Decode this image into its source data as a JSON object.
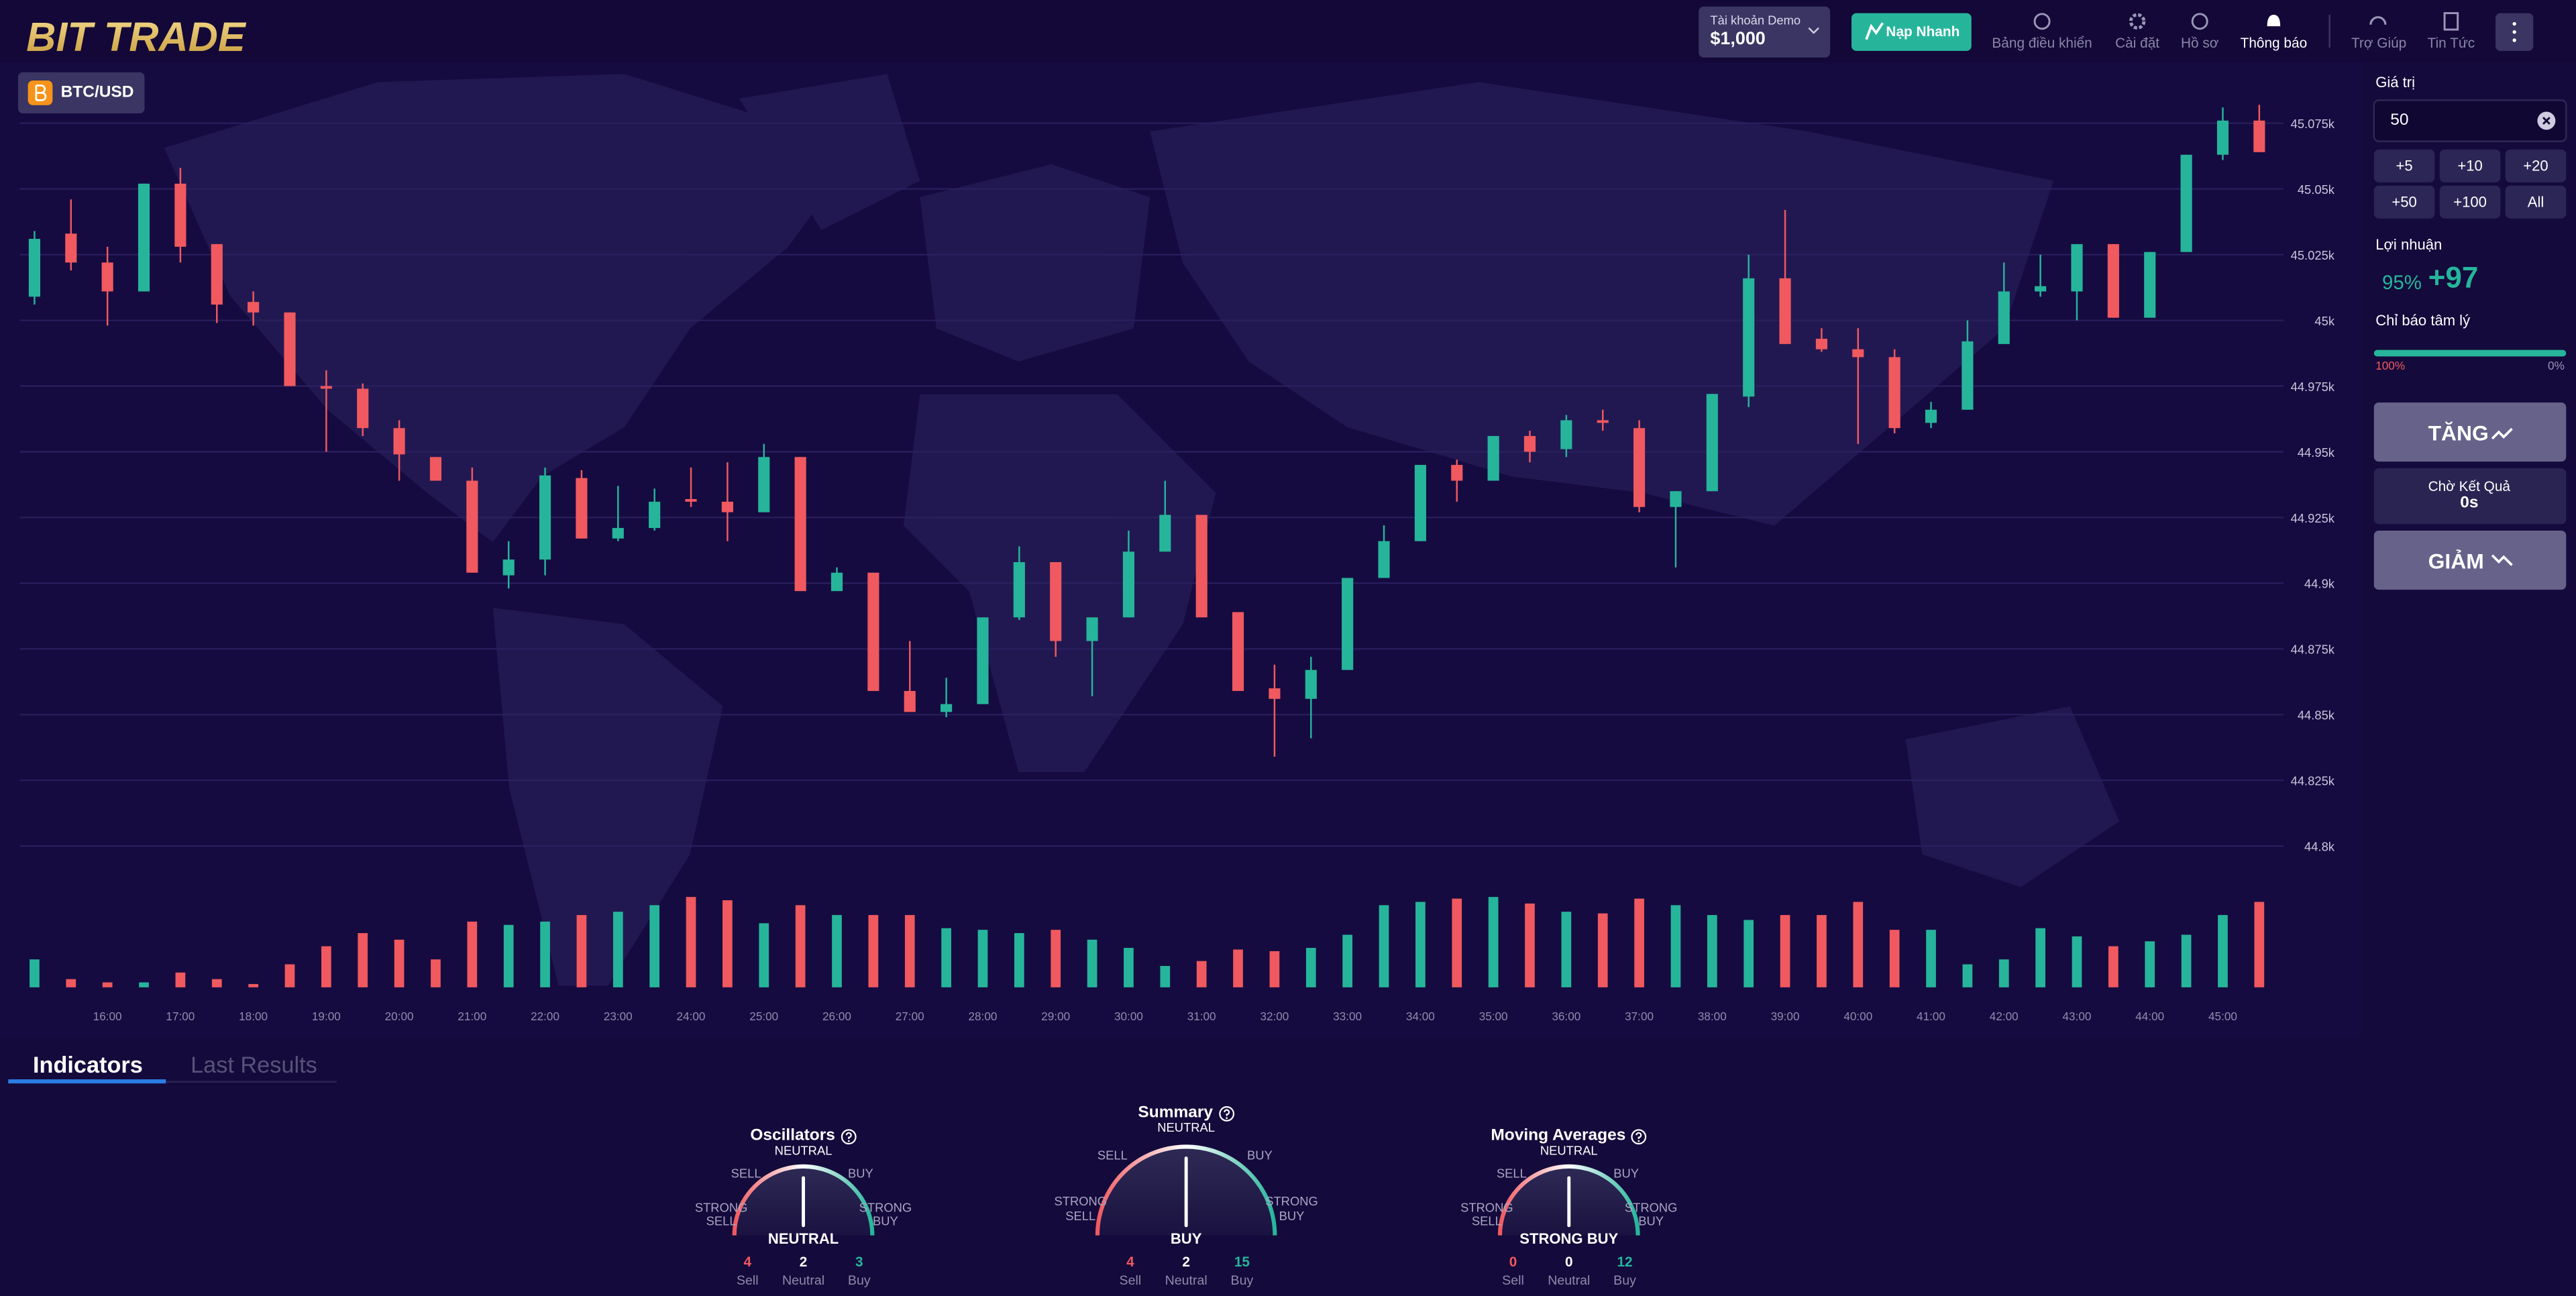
{
  "header": {
    "logo": "BIT TRADE",
    "account_label": "Tài khoản Demo",
    "balance": "$1,000",
    "deposit": "Nạp Nhanh",
    "nav": [
      "Bảng điều khiển",
      "Cài đặt",
      "Hồ sơ",
      "Thông báo",
      "Trợ Giúp",
      "Tin Tức"
    ]
  },
  "chart": {
    "type": "candlestick",
    "symbol": "BTC/USD",
    "up_color": "#26b59b",
    "down_color": "#f0595f",
    "grid": true,
    "ylim": [
      44790,
      45085
    ],
    "yticks": [
      {
        "value": 44800,
        "label": "44.8k"
      },
      {
        "value": 44825,
        "label": "44.825k"
      },
      {
        "value": 44850,
        "label": "44.85k"
      },
      {
        "value": 44875,
        "label": "44.875k"
      },
      {
        "value": 44900,
        "label": "44.9k"
      },
      {
        "value": 44925,
        "label": "44.925k"
      },
      {
        "value": 44950,
        "label": "44.95k"
      },
      {
        "value": 44975,
        "label": "44.975k"
      },
      {
        "value": 45000,
        "label": "45k"
      },
      {
        "value": 45025,
        "label": "45.025k"
      },
      {
        "value": 45050,
        "label": "45.05k"
      },
      {
        "value": 45075,
        "label": "45.075k"
      }
    ],
    "x_labels": [
      "16:00",
      "17:00",
      "18:00",
      "19:00",
      "20:00",
      "21:00",
      "22:00",
      "23:00",
      "24:00",
      "25:00",
      "26:00",
      "27:00",
      "28:00",
      "29:00",
      "30:00",
      "31:00",
      "32:00",
      "33:00",
      "34:00",
      "35:00",
      "36:00",
      "37:00",
      "38:00",
      "39:00",
      "40:00",
      "41:00",
      "42:00",
      "43:00",
      "44:00",
      "45:00"
    ],
    "open": [
      45009,
      45033,
      45022,
      45011,
      45052,
      45029,
      45007,
      45003,
      44975,
      44974,
      44959,
      44948,
      44939,
      44903,
      44909,
      44940,
      44917,
      44921,
      44932,
      44931,
      44927,
      44948,
      44897,
      44904,
      44859,
      44851,
      44854,
      44887,
      44908,
      44878,
      44887,
      44912,
      44926,
      44889,
      44860,
      44856,
      44867,
      44902,
      44916,
      44945,
      44939,
      44956,
      44951,
      44962,
      44959,
      44929,
      44935,
      44971,
      45016,
      44993,
      44989,
      44986,
      44961,
      44966,
      44991,
      45011,
      45011,
      45029,
      45001,
      45026,
      45063,
      45076
    ],
    "high": [
      45034,
      45046,
      45028,
      45052,
      45058,
      45029,
      45011,
      45003,
      44981,
      44976,
      44962,
      44948,
      44944,
      44916,
      44944,
      44943,
      44937,
      44936,
      44944,
      44946,
      44953,
      44948,
      44906,
      44904,
      44878,
      44864,
      44887,
      44914,
      44908,
      44887,
      44920,
      44939,
      44926,
      44889,
      44869,
      44872,
      44902,
      44922,
      44945,
      44947,
      44956,
      44958,
      44964,
      44966,
      44962,
      44935,
      44972,
      45025,
      45042,
      44997,
      44997,
      44989,
      44969,
      45000,
      45022,
      45025,
      45029,
      45029,
      45026,
      45063,
      45081,
      45082
    ],
    "low": [
      45006,
      45019,
      44998,
      45011,
      45022,
      44999,
      44998,
      44975,
      44950,
      44956,
      44939,
      44939,
      44904,
      44898,
      44903,
      44917,
      44916,
      44920,
      44929,
      44916,
      44927,
      44897,
      44897,
      44859,
      44851,
      44849,
      44854,
      44886,
      44872,
      44857,
      44887,
      44912,
      44887,
      44859,
      44834,
      44841,
      44867,
      44902,
      44916,
      44931,
      44939,
      44946,
      44948,
      44958,
      44927,
      44906,
      44935,
      44967,
      44991,
      44988,
      44953,
      44957,
      44959,
      44966,
      44991,
      45009,
      45000,
      45001,
      45001,
      45026,
      45061,
      45064
    ],
    "close": [
      45031,
      45022,
      45011,
      45052,
      45028,
      45006,
      45003,
      44975,
      44974,
      44959,
      44949,
      44939,
      44904,
      44909,
      44941,
      44917,
      44921,
      44931,
      44931,
      44927,
      44948,
      44897,
      44904,
      44859,
      44851,
      44854,
      44887,
      44908,
      44878,
      44887,
      44912,
      44926,
      44887,
      44859,
      44856,
      44867,
      44902,
      44916,
      44945,
      44939,
      44956,
      44950,
      44962,
      44961,
      44929,
      44935,
      44972,
      45016,
      44991,
      44989,
      44986,
      44959,
      44966,
      44992,
      45011,
      45013,
      45029,
      45001,
      45026,
      45063,
      45076,
      45064
    ],
    "volume": [
      17,
      5,
      3,
      3,
      9,
      5,
      2,
      14,
      25,
      33,
      29,
      17,
      40,
      38,
      40,
      44,
      46,
      50,
      55,
      53,
      39,
      50,
      44,
      44,
      44,
      36,
      35,
      33,
      35,
      29,
      24,
      13,
      16,
      23,
      22,
      24,
      32,
      50,
      52,
      54,
      55,
      51,
      46,
      45,
      54,
      50,
      44,
      41,
      44,
      44,
      52,
      35,
      35,
      14,
      17,
      36,
      31,
      25,
      28,
      32,
      44,
      52
    ]
  },
  "sidebar": {
    "amount_label": "Giá trị",
    "amount": "50",
    "increments": [
      "+5",
      "+10",
      "+20",
      "+50",
      "+100",
      "All"
    ],
    "profit_label": "Lợi nhuận",
    "profit_percent": "95%",
    "profit_value": "+97",
    "sentiment_label": "Chỉ báo tâm lý",
    "sentiment_left": "100%",
    "sentiment_right": "0%",
    "up_button": "TĂNG",
    "wait_label": "Chờ Kết Quả",
    "wait_value": "0s",
    "down_button": "GIẢM"
  },
  "indicators": {
    "tabs": [
      "Indicators",
      "Last Results"
    ],
    "scale": {
      "neutral": "NEUTRAL",
      "sell": "SELL",
      "buy": "BUY",
      "strong_sell": "STRONG SELL",
      "strong_buy": "STRONG BUY"
    },
    "count_labels": [
      "Sell",
      "Neutral",
      "Buy"
    ],
    "gauges": [
      {
        "title": "Oscillators",
        "verdict": "NEUTRAL",
        "counts": [
          4,
          2,
          3
        ]
      },
      {
        "title": "Summary",
        "verdict": "BUY",
        "counts": [
          4,
          2,
          15
        ]
      },
      {
        "title": "Moving Averages",
        "verdict": "STRONG BUY",
        "counts": [
          0,
          0,
          12
        ]
      }
    ]
  }
}
